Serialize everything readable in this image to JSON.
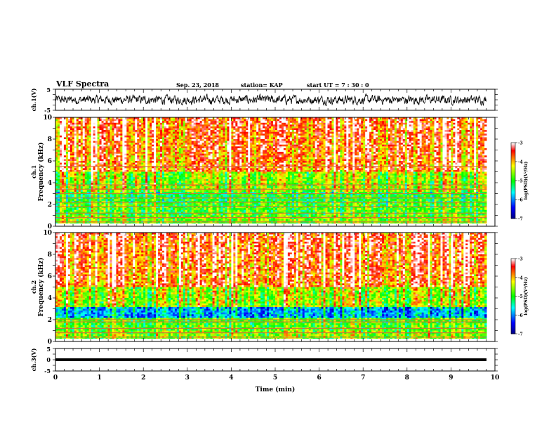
{
  "header": {
    "title": "VLF Spectra",
    "date": "Sep. 23, 2018",
    "station": "station= KAP",
    "start": "start  UT  =   7 : 30 : 0"
  },
  "chart_data": [
    {
      "type": "line",
      "panel": "ch1-waveform",
      "ylabel": "ch.1(V)",
      "ylim": [
        -5,
        5
      ],
      "yticks": [
        "5",
        "-5"
      ],
      "xlim": [
        0,
        10
      ],
      "description_series": [
        {
          "values_range": [
            -2,
            2
          ]
        }
      ]
    },
    {
      "type": "heatmap",
      "panel": "ch1-spectrogram",
      "ylabel_line1": "ch.1",
      "ylabel_line2": "Frequency  (kHz)",
      "ylim": [
        0,
        10
      ],
      "yticks": [
        "0",
        "2",
        "4",
        "6",
        "8",
        "10"
      ],
      "xlim": [
        0,
        10
      ],
      "colorbar": {
        "label": "log(PSD)(V²/Hz)",
        "range": [
          -7,
          -3
        ],
        "ticks": [
          "-3",
          "-4",
          "-5",
          "-6",
          "-7"
        ],
        "colors": [
          "#00007f",
          "#0000ff",
          "#00ffff",
          "#00ff00",
          "#ffff00",
          "#ff0000",
          "#ffffff"
        ]
      },
      "narrowband_lines_khz": [
        0.4,
        0.8,
        1.2,
        1.8,
        2.2,
        2.6,
        3.0,
        3.4,
        3.8,
        5.5
      ]
    },
    {
      "type": "heatmap",
      "panel": "ch2-spectrogram",
      "ylabel_line1": "ch.2",
      "ylabel_line2": "Frequency  (kHz)",
      "ylim": [
        0,
        10
      ],
      "yticks": [
        "0",
        "2",
        "4",
        "6",
        "8",
        "10"
      ],
      "xlim": [
        0,
        10
      ],
      "colorbar": {
        "label": "log(PSD)(V²/Hz)",
        "range": [
          -7,
          -3
        ],
        "ticks": [
          "-3",
          "-4",
          "-5",
          "-6",
          "-7"
        ]
      },
      "narrowband_lines_khz": [
        0.4,
        0.8,
        1.2,
        1.8,
        2.0
      ]
    },
    {
      "type": "line",
      "panel": "ch3-waveform",
      "ylabel": "ch.3(V)",
      "ylim": [
        -5,
        5
      ],
      "yticks": [
        "5",
        "0",
        "-5"
      ],
      "xlim": [
        0,
        10
      ],
      "series": [
        {
          "values": [
            0,
            0
          ]
        }
      ],
      "xlabel": "Time  (min)",
      "xticks": [
        "0",
        "1",
        "2",
        "3",
        "4",
        "5",
        "6",
        "7",
        "8",
        "9",
        "10"
      ]
    }
  ]
}
